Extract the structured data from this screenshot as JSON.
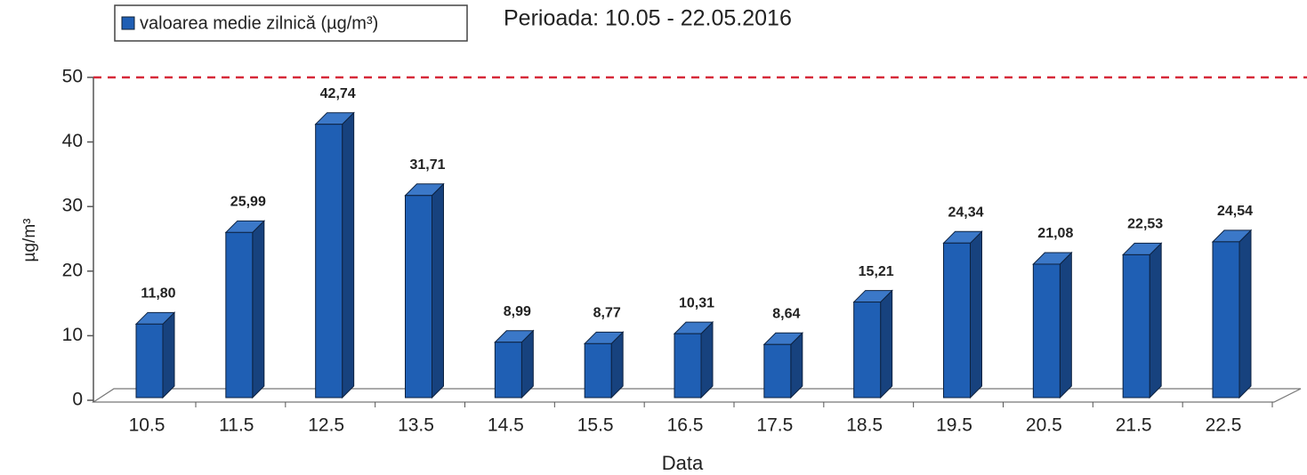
{
  "chart_data": {
    "type": "bar",
    "title": "Perioada: 10.05 - 22.05.2016",
    "legend": "valoarea medie zilnică (µg/m³)",
    "y_label": "µg/m³",
    "x_label": "Data",
    "categories": [
      "10.5",
      "11.5",
      "12.5",
      "13.5",
      "14.5",
      "15.5",
      "16.5",
      "17.5",
      "18.5",
      "19.5",
      "20.5",
      "21.5",
      "22.5"
    ],
    "values": [
      11.8,
      25.99,
      42.74,
      31.71,
      8.99,
      8.77,
      10.31,
      8.64,
      15.21,
      24.34,
      21.08,
      22.53,
      24.54
    ],
    "value_labels": [
      "11,80",
      "25,99",
      "42,74",
      "31,71",
      "8,99",
      "8,77",
      "10,31",
      "8,64",
      "15,21",
      "24,34",
      "21,08",
      "22,53",
      "24,54"
    ],
    "color": "#1f5fb4",
    "ylim": [
      0,
      50
    ],
    "yticks": [
      0,
      10,
      20,
      30,
      40,
      50
    ],
    "reference_line": {
      "value": 50,
      "color": "#d62839"
    }
  }
}
